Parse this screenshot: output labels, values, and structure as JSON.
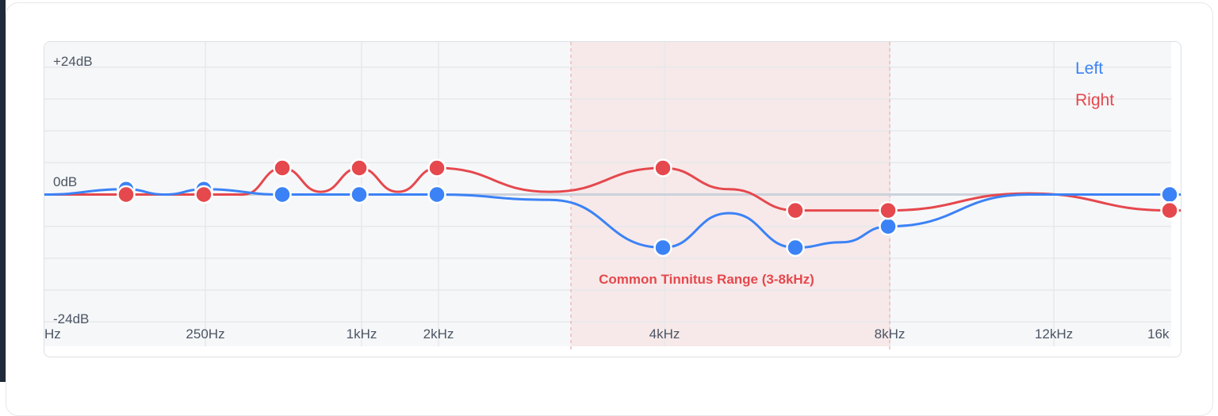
{
  "chart_data": {
    "type": "line",
    "y_axis": {
      "labels": [
        "+24dB",
        "0dB",
        "-24dB"
      ],
      "ylim": [
        -24,
        24
      ],
      "grid_step": 6
    },
    "x_axis": {
      "tick_labels": [
        "Hz",
        "250Hz",
        "1kHz",
        "2kHz",
        "4kHz",
        "8kHz",
        "12kHz",
        "16k"
      ]
    },
    "highlight_region": {
      "label": "Common Tinnitus Range (3-8kHz)",
      "color": "#e5484d"
    },
    "legend": {
      "position": "top-right"
    },
    "series": [
      {
        "name": "Left",
        "color": "#3b82f6",
        "points": [
          {
            "freq": "",
            "db": 1
          },
          {
            "freq": "250Hz",
            "db": 1
          },
          {
            "freq": "",
            "db": 0
          },
          {
            "freq": "1kHz",
            "db": 0
          },
          {
            "freq": "2kHz",
            "db": 0
          },
          {
            "freq": "4kHz",
            "db": -10
          },
          {
            "freq": "",
            "db": -10
          },
          {
            "freq": "8kHz",
            "db": -6
          },
          {
            "freq": "16k",
            "db": 0
          }
        ]
      },
      {
        "name": "Right",
        "color": "#e5484d",
        "points": [
          {
            "freq": "",
            "db": 0
          },
          {
            "freq": "250Hz",
            "db": 0
          },
          {
            "freq": "",
            "db": 5
          },
          {
            "freq": "1kHz",
            "db": 5
          },
          {
            "freq": "2kHz",
            "db": 5
          },
          {
            "freq": "4kHz",
            "db": 5
          },
          {
            "freq": "",
            "db": -3
          },
          {
            "freq": "8kHz",
            "db": -3
          },
          {
            "freq": "16k",
            "db": -3
          }
        ]
      }
    ]
  }
}
